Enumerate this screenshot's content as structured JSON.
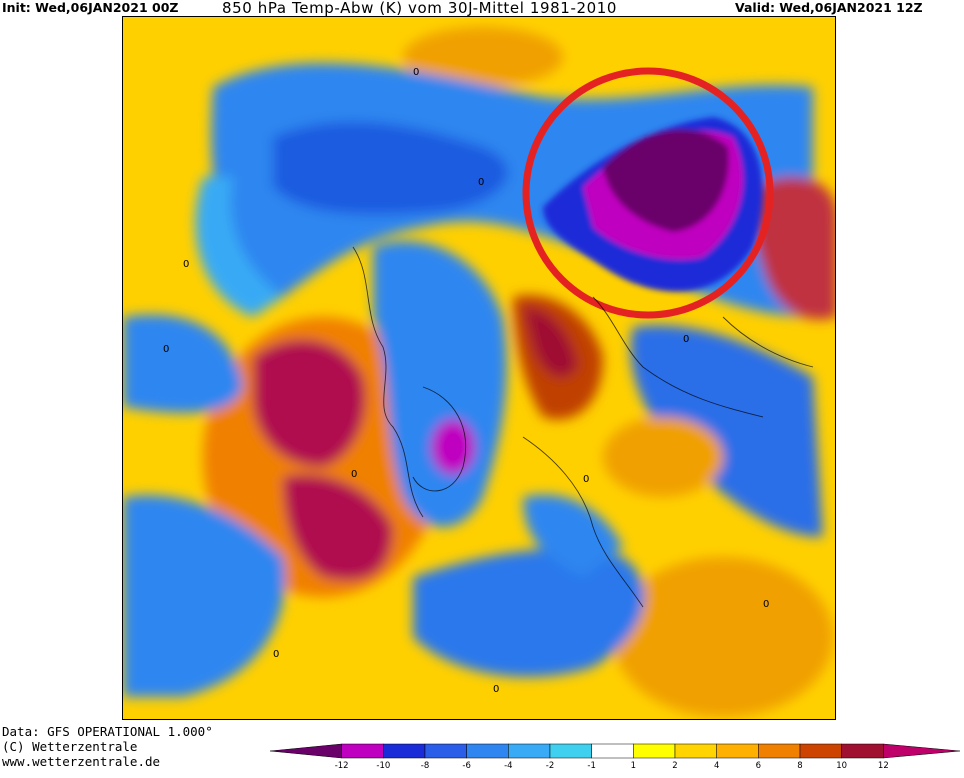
{
  "header": {
    "init": "Init: Wed,06JAN2021 00Z",
    "title": "850 hPa Temp-Abw (K) vom 30J-Mittel 1981-2010",
    "valid": "Valid: Wed,06JAN2021 12Z"
  },
  "footer": {
    "line1": "Data: GFS OPERATIONAL 1.000°",
    "line2": "(C) Wetterzentrale",
    "line3": "www.wetterzentrale.de"
  },
  "map": {
    "contour_label": "0",
    "highlight_circle_color": "#e52222"
  },
  "legend": {
    "ticks": [
      "-12",
      "-10",
      "-8",
      "-6",
      "-4",
      "-2",
      "-1",
      "1",
      "2",
      "4",
      "6",
      "8",
      "10",
      "12"
    ],
    "colors": [
      "#6a006a",
      "#c000c0",
      "#1a2bd8",
      "#2a5ee8",
      "#2f86f0",
      "#39aaf5",
      "#3fd0f0",
      "#ffffff",
      "#ffff00",
      "#ffd400",
      "#ffb000",
      "#f08000",
      "#cc4400",
      "#a01030",
      "#c0006a"
    ]
  }
}
